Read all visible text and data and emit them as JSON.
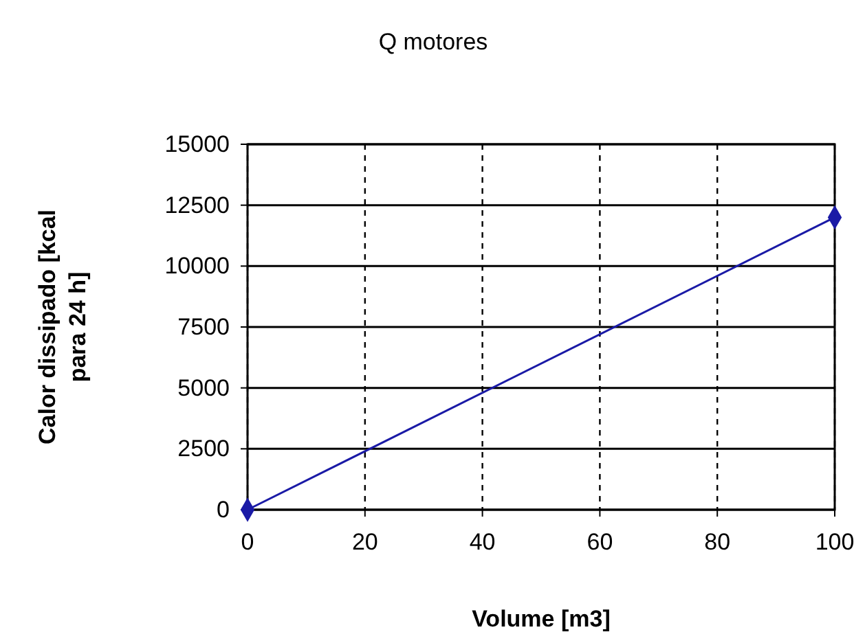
{
  "chart_data": {
    "type": "line",
    "title": "Q motores",
    "xlabel": "Volume [m3]",
    "ylabel": "Calor dissipado [kcal para 24 h]",
    "x": [
      0,
      100
    ],
    "series": [
      {
        "color": "#1a1aa6",
        "values": [
          0,
          12000
        ]
      }
    ],
    "xlim": [
      0,
      100
    ],
    "xticks": [
      0,
      20,
      40,
      60,
      80,
      100
    ],
    "ylim": [
      0,
      15000
    ],
    "yticks": [
      0,
      2500,
      5000,
      7500,
      10000,
      12500,
      15000
    ],
    "grid": true,
    "marker": "diamond",
    "line_style": "solid"
  }
}
